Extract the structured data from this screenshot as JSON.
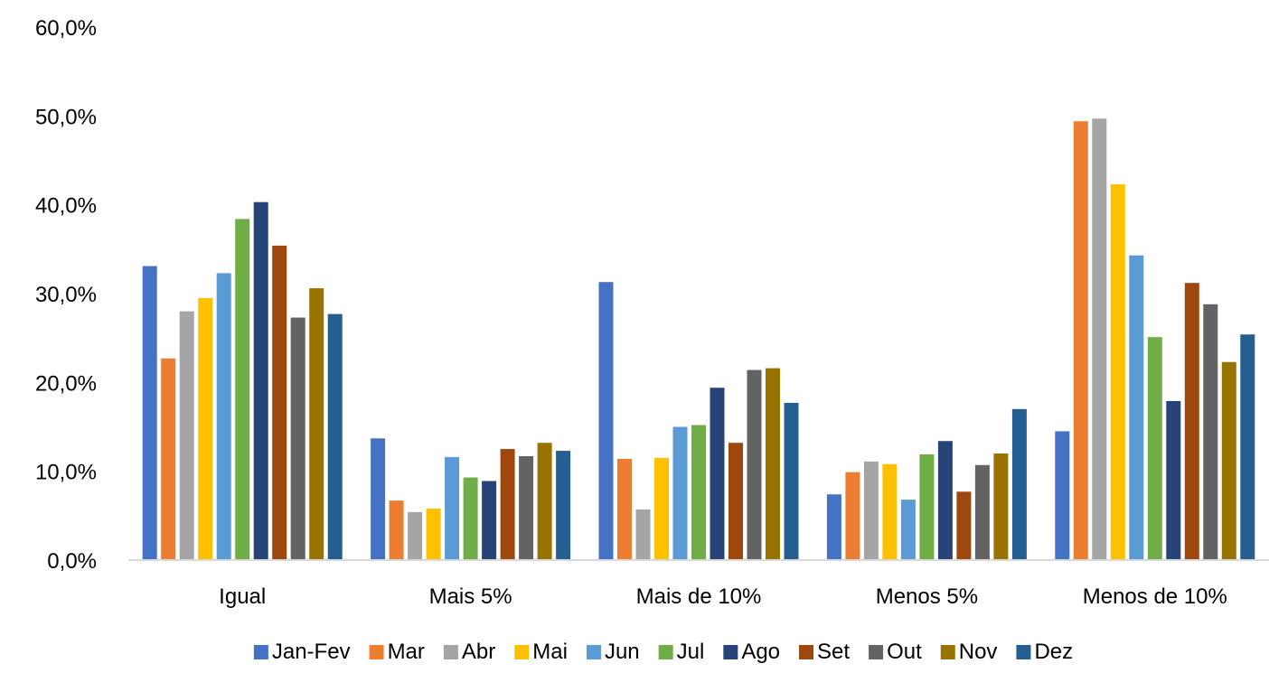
{
  "chart_data": {
    "type": "bar",
    "title": "",
    "xlabel": "",
    "ylabel": "",
    "ylim": [
      0,
      60
    ],
    "y_ticks": [
      0,
      10,
      20,
      30,
      40,
      50,
      60
    ],
    "y_tick_labels": [
      "0,0%",
      "10,0%",
      "20,0%",
      "30,0%",
      "40,0%",
      "50,0%",
      "60,0%"
    ],
    "grid": false,
    "legend_position": "bottom",
    "categories": [
      "Igual",
      "Mais 5%",
      "Mais de 10%",
      "Menos 5%",
      "Menos de 10%"
    ],
    "series": [
      {
        "name": "Jan-Fev",
        "color": "#4472C4",
        "values": [
          33.1,
          13.7,
          31.3,
          7.4,
          14.5
        ]
      },
      {
        "name": "Mar",
        "color": "#ED7D31",
        "values": [
          22.7,
          6.7,
          11.4,
          9.9,
          49.4
        ]
      },
      {
        "name": "Abr",
        "color": "#A5A5A5",
        "values": [
          28.0,
          5.4,
          5.7,
          11.1,
          49.7
        ]
      },
      {
        "name": "Mai",
        "color": "#FFC000",
        "values": [
          29.5,
          5.8,
          11.5,
          10.8,
          42.3
        ]
      },
      {
        "name": "Jun",
        "color": "#5B9BD5",
        "values": [
          32.3,
          11.6,
          15.0,
          6.8,
          34.3
        ]
      },
      {
        "name": "Jul",
        "color": "#70AD47",
        "values": [
          38.4,
          9.3,
          15.2,
          11.9,
          25.1
        ]
      },
      {
        "name": "Ago",
        "color": "#264478",
        "values": [
          40.3,
          8.9,
          19.4,
          13.4,
          17.9
        ]
      },
      {
        "name": "Set",
        "color": "#9E480E",
        "values": [
          35.4,
          12.5,
          13.2,
          7.7,
          31.2
        ]
      },
      {
        "name": "Out",
        "color": "#636363",
        "values": [
          27.3,
          11.7,
          21.4,
          10.7,
          28.8
        ]
      },
      {
        "name": "Nov",
        "color": "#997300",
        "values": [
          30.6,
          13.2,
          21.6,
          12.0,
          22.3
        ]
      },
      {
        "name": "Dez",
        "color": "#255E91",
        "values": [
          27.7,
          12.3,
          17.7,
          17.0,
          25.4
        ]
      }
    ]
  }
}
